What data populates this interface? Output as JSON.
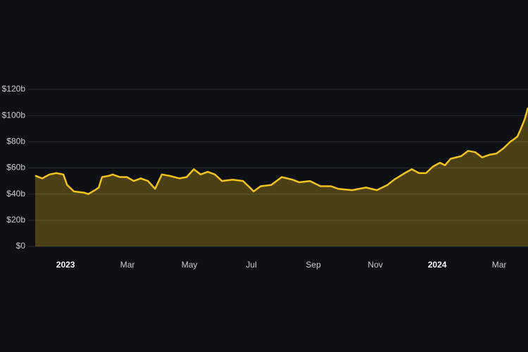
{
  "chart_data": {
    "type": "line",
    "x": [
      -0.98,
      -0.75,
      -0.52,
      -0.3,
      -0.07,
      0.05,
      0.27,
      0.61,
      0.73,
      0.95,
      1.07,
      1.18,
      1.41,
      1.52,
      1.75,
      1.98,
      2.2,
      2.43,
      2.66,
      2.89,
      3.11,
      3.34,
      3.68,
      3.91,
      4.14,
      4.36,
      4.59,
      4.82,
      5.05,
      5.39,
      5.73,
      5.95,
      6.07,
      6.3,
      6.64,
      6.98,
      7.32,
      7.55,
      7.89,
      8.23,
      8.57,
      8.8,
      9.25,
      9.7,
      10.05,
      10.39,
      10.61,
      10.95,
      11.18,
      11.41,
      11.64,
      11.86,
      12.09,
      12.25,
      12.43,
      12.77,
      13.0,
      13.23,
      13.45,
      13.68,
      13.91,
      14.14,
      14.36,
      14.48,
      14.59,
      14.7,
      14.82,
      14.93
    ],
    "series": [
      {
        "color": "#f2c31b",
        "values": [
          54,
          52,
          55,
          56,
          55,
          47,
          42,
          41,
          40,
          43,
          45,
          53,
          54,
          55,
          53,
          53,
          50,
          52,
          50,
          44,
          55,
          54,
          52,
          53,
          59,
          55,
          57,
          55,
          50,
          51,
          50,
          45,
          42,
          46,
          47,
          53,
          51,
          49,
          50,
          46,
          46,
          44,
          43,
          45,
          43,
          47,
          51,
          56,
          59,
          56,
          56,
          61,
          64,
          62,
          67,
          69,
          73,
          72,
          68,
          70,
          71,
          75,
          80,
          82,
          84,
          90,
          97,
          106
        ]
      }
    ],
    "xlim": [
      -0.98,
      14.93
    ],
    "xticks": [
      {
        "value": 0,
        "label": "2023"
      },
      {
        "value": 2,
        "label": "Mar"
      },
      {
        "value": 4,
        "label": "May"
      },
      {
        "value": 6,
        "label": "Jul"
      },
      {
        "value": 8,
        "label": "Sep"
      },
      {
        "value": 10,
        "label": "Nov"
      },
      {
        "value": 12,
        "label": "2024"
      },
      {
        "value": 14,
        "label": "Mar"
      }
    ],
    "ylim": [
      0,
      120
    ],
    "yticks": [
      {
        "value": 0,
        "label": "$0"
      },
      {
        "value": 20,
        "label": "$20b"
      },
      {
        "value": 40,
        "label": "$40b"
      },
      {
        "value": 60,
        "label": "$60b"
      },
      {
        "value": 80,
        "label": "$80b"
      },
      {
        "value": 100,
        "label": "$100b"
      },
      {
        "value": 120,
        "label": "$120b"
      }
    ],
    "grid": true
  }
}
